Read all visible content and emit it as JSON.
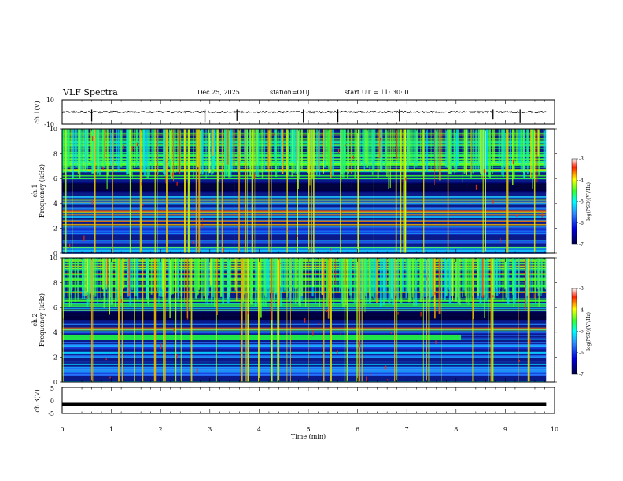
{
  "header": {
    "title": "VLF Spectra",
    "date": "Dec.25, 2025",
    "station": "station=OUJ",
    "start_ut": "start  UT  =   11: 30: 0"
  },
  "chart_data": [
    {
      "type": "line",
      "name": "ch1-waveform",
      "ylabel": "ch.1(V)",
      "ylim": [
        -10,
        10
      ],
      "yticks": [
        "10",
        "-10"
      ],
      "baseline": 0,
      "spikes_min": [
        0.6,
        2.9,
        3.55,
        4.9,
        5.6,
        6.85,
        8.75,
        9.3
      ]
    },
    {
      "type": "heatmap",
      "name": "ch1-spectrogram",
      "ylabel_top": "ch.1",
      "ylabel": "Frequency (kHz)",
      "ylim": [
        0,
        10
      ],
      "yticks": [
        "0",
        "2",
        "4",
        "6",
        "8",
        "10"
      ],
      "colorbar": {
        "label": "log(PSD)(V²/Hz)",
        "range": [
          -7,
          -3
        ],
        "ticks": [
          "-3",
          "-4",
          "-5",
          "-6",
          "-7"
        ]
      }
    },
    {
      "type": "heatmap",
      "name": "ch2-spectrogram",
      "ylabel_top": "ch.2",
      "ylabel": "Frequency (kHz)",
      "ylim": [
        0,
        10
      ],
      "yticks": [
        "0",
        "2",
        "4",
        "6",
        "8",
        "10"
      ],
      "band_khz": [
        3.4,
        3.8
      ],
      "band_end_min": 8.1,
      "colorbar": {
        "label": "log(PSD)(V²/Hz)",
        "range": [
          -7,
          -3
        ],
        "ticks": [
          "-3",
          "-4",
          "-5",
          "-6",
          "-7"
        ]
      }
    },
    {
      "type": "line",
      "name": "ch3-waveform",
      "ylabel": "ch.3(V)",
      "ylim": [
        -5,
        5
      ],
      "yticks": [
        "5",
        "0",
        "-5"
      ],
      "value": -1.5
    }
  ],
  "xaxis": {
    "label": "Time (min)",
    "xlim": [
      0,
      10
    ],
    "ticks": [
      "0",
      "1",
      "2",
      "3",
      "4",
      "5",
      "6",
      "7",
      "8",
      "9",
      "10"
    ],
    "data_end_min": 9.83
  },
  "colors": {
    "colormap": [
      "#000033",
      "#0000cc",
      "#2c7bff",
      "#00e5ff",
      "#33ff33",
      "#e6ff00",
      "#ff3300",
      "#ffffff"
    ],
    "trace": "#000000"
  }
}
